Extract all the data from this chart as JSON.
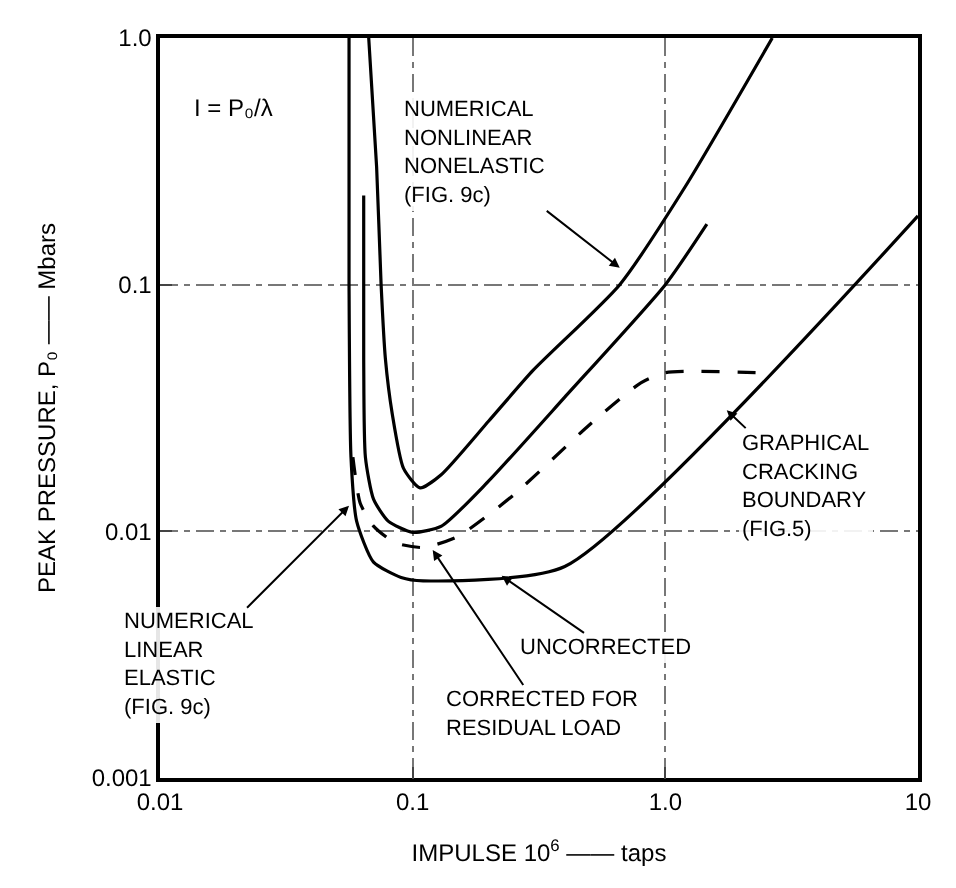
{
  "chart_data": {
    "type": "line",
    "xlabel": "IMPULSE 10$^{6}$ —— taps",
    "ylabel": "PEAK PRESSURE, P₀ —— Mbars",
    "log": "xy",
    "grid": true,
    "xlim": [
      0.01,
      10
    ],
    "ylim": [
      0.001,
      1
    ],
    "xticks": [
      0.01,
      0.1,
      {
        "value": 1,
        "label": "1.0"
      },
      10
    ],
    "yticks": [
      0.001,
      0.01,
      0.1,
      {
        "value": 1,
        "label": "1.0"
      }
    ],
    "series": [
      {
        "color": "#000000",
        "line_style": "solid",
        "x": [
          0.067,
          0.072,
          0.075,
          0.078,
          0.083,
          0.092,
          0.107,
          0.13,
          0.2,
          0.3,
          0.66,
          1.2,
          2.65
        ],
        "values": [
          1.0,
          0.3,
          0.1,
          0.05,
          0.03,
          0.018,
          0.015,
          0.017,
          0.028,
          0.045,
          0.1,
          0.25,
          1.0
        ]
      },
      {
        "color": "#000000",
        "line_style": "solid",
        "x": [
          0.064,
          0.064,
          0.065,
          0.07,
          0.08,
          0.1,
          0.13,
          0.2,
          0.4,
          1.0,
          1.46
        ],
        "values": [
          0.23,
          0.05,
          0.02,
          0.0135,
          0.011,
          0.0099,
          0.0105,
          0.016,
          0.035,
          0.1,
          0.176
        ]
      },
      {
        "color": "#000000",
        "line_style": "dashed",
        "x": [
          0.058,
          0.062,
          0.07,
          0.085,
          0.11,
          0.15,
          0.25,
          0.5,
          0.8,
          1.0,
          2.33
        ],
        "values": [
          0.02,
          0.013,
          0.0105,
          0.009,
          0.0086,
          0.0095,
          0.014,
          0.027,
          0.04,
          0.044,
          0.044
        ]
      },
      {
        "color": "#000000",
        "line_style": "solid",
        "x": [
          0.056,
          0.056,
          0.057,
          0.06,
          0.07,
          0.09,
          0.11,
          0.4,
          10
        ],
        "values": [
          1.0,
          0.1,
          0.02,
          0.011,
          0.0075,
          0.0065,
          0.0063,
          0.0072,
          0.19
        ]
      }
    ],
    "annotations": [
      "I = P₀/λ",
      {
        "text": "NUMERICAL\nNONLINEAR\nNONELASTIC\n(FIG. 9c)",
        "x": 0.66,
        "y": 0.117
      },
      {
        "text": "GRAPHICAL\nCRACKING\nBOUNDARY\n(FIG.5)",
        "x": 1.75,
        "y": 0.031
      },
      {
        "text": "UNCORRECTED",
        "x": 0.225,
        "y": 0.0066
      },
      {
        "text": "CORRECTED FOR\nRESIDUAL LOAD",
        "x": 0.12,
        "y": 0.0084
      },
      {
        "text": "NUMERICAL\nLINEAR\nELASTIC\n(FIG. 9c)",
        "x": 0.056,
        "y": 0.0127
      }
    ]
  }
}
